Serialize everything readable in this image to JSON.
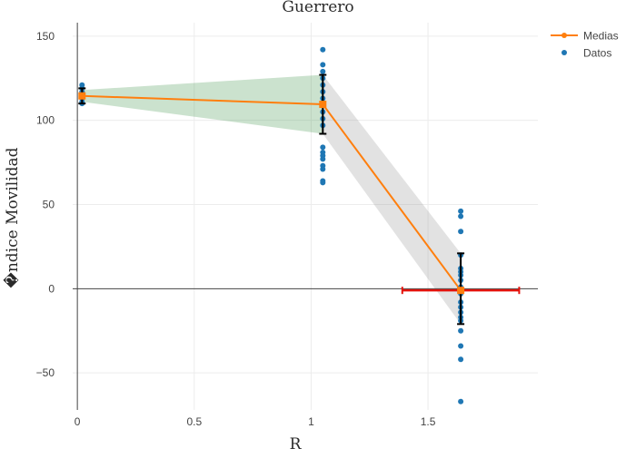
{
  "chart_data": {
    "type": "scatter",
    "title": "Guerrero",
    "xlabel": "R",
    "ylabel": "�ndice Movilidad",
    "xlim": [
      -0.02,
      1.97
    ],
    "ylim": [
      -72,
      158
    ],
    "x_ticks": [
      0,
      0.5,
      1,
      1.5
    ],
    "x_tick_labels": [
      "0",
      "0.5",
      "1",
      "1.5"
    ],
    "y_ticks": [
      -50,
      0,
      50,
      100,
      150
    ],
    "y_tick_labels": [
      "−50",
      "0",
      "50",
      "100",
      "150"
    ],
    "grid": true,
    "legend": {
      "position": "top-right",
      "items": [
        {
          "label": "Medias",
          "color": "#ff7f0e",
          "kind": "line-marker"
        },
        {
          "label": "Datos",
          "color": "#1f77b4",
          "kind": "marker"
        }
      ]
    },
    "series": [
      {
        "name": "Medias",
        "kind": "line",
        "color": "#ff7f0e",
        "x": [
          0.02,
          1.05,
          1.64
        ],
        "y": [
          114.5,
          109.5,
          -1
        ]
      },
      {
        "name": "Datos",
        "kind": "scatter",
        "color": "#1f77b4",
        "points": [
          [
            0.02,
            121
          ],
          [
            0.02,
            119
          ],
          [
            0.02,
            117
          ],
          [
            0.02,
            115
          ],
          [
            0.02,
            113
          ],
          [
            0.02,
            111
          ],
          [
            0.02,
            110
          ],
          [
            1.05,
            142
          ],
          [
            1.05,
            133
          ],
          [
            1.05,
            129
          ],
          [
            1.05,
            125
          ],
          [
            1.05,
            121
          ],
          [
            1.05,
            117
          ],
          [
            1.05,
            113
          ],
          [
            1.05,
            109
          ],
          [
            1.05,
            105
          ],
          [
            1.05,
            101
          ],
          [
            1.05,
            97
          ],
          [
            1.05,
            84
          ],
          [
            1.05,
            81
          ],
          [
            1.05,
            79
          ],
          [
            1.05,
            77
          ],
          [
            1.05,
            73
          ],
          [
            1.05,
            71
          ],
          [
            1.05,
            64
          ],
          [
            1.05,
            63
          ],
          [
            1.64,
            46
          ],
          [
            1.64,
            43
          ],
          [
            1.64,
            34
          ],
          [
            1.64,
            20
          ],
          [
            1.64,
            12
          ],
          [
            1.64,
            10
          ],
          [
            1.64,
            8
          ],
          [
            1.64,
            5
          ],
          [
            1.64,
            1
          ],
          [
            1.64,
            -1
          ],
          [
            1.64,
            -3
          ],
          [
            1.64,
            -8
          ],
          [
            1.64,
            -11
          ],
          [
            1.64,
            -14
          ],
          [
            1.64,
            -17
          ],
          [
            1.64,
            -19
          ],
          [
            1.64,
            -25
          ],
          [
            1.64,
            -34
          ],
          [
            1.64,
            -42
          ],
          [
            1.64,
            -67
          ]
        ]
      },
      {
        "name": "error-bars-y",
        "kind": "errorbar",
        "color": "#000000",
        "bars": [
          {
            "x": 0.02,
            "low": 110,
            "high": 119
          },
          {
            "x": 1.05,
            "low": 92,
            "high": 127
          },
          {
            "x": 1.64,
            "low": -21,
            "high": 21
          }
        ]
      },
      {
        "name": "error-bar-x",
        "kind": "errorbar-x",
        "color": "#e3120b",
        "bars": [
          {
            "y": -1,
            "low": 1.39,
            "high": 1.89
          }
        ]
      },
      {
        "name": "band-green",
        "kind": "band",
        "color": "#2e8b3a",
        "opacity": 0.25,
        "x": [
          0.02,
          1.05
        ],
        "low": [
          111,
          92
        ],
        "high": [
          118,
          127
        ]
      },
      {
        "name": "band-gray",
        "kind": "band",
        "color": "#8c8c8c",
        "opacity": 0.25,
        "x": [
          1.05,
          1.64
        ],
        "low": [
          92,
          -21
        ],
        "high": [
          127,
          21
        ]
      }
    ]
  }
}
